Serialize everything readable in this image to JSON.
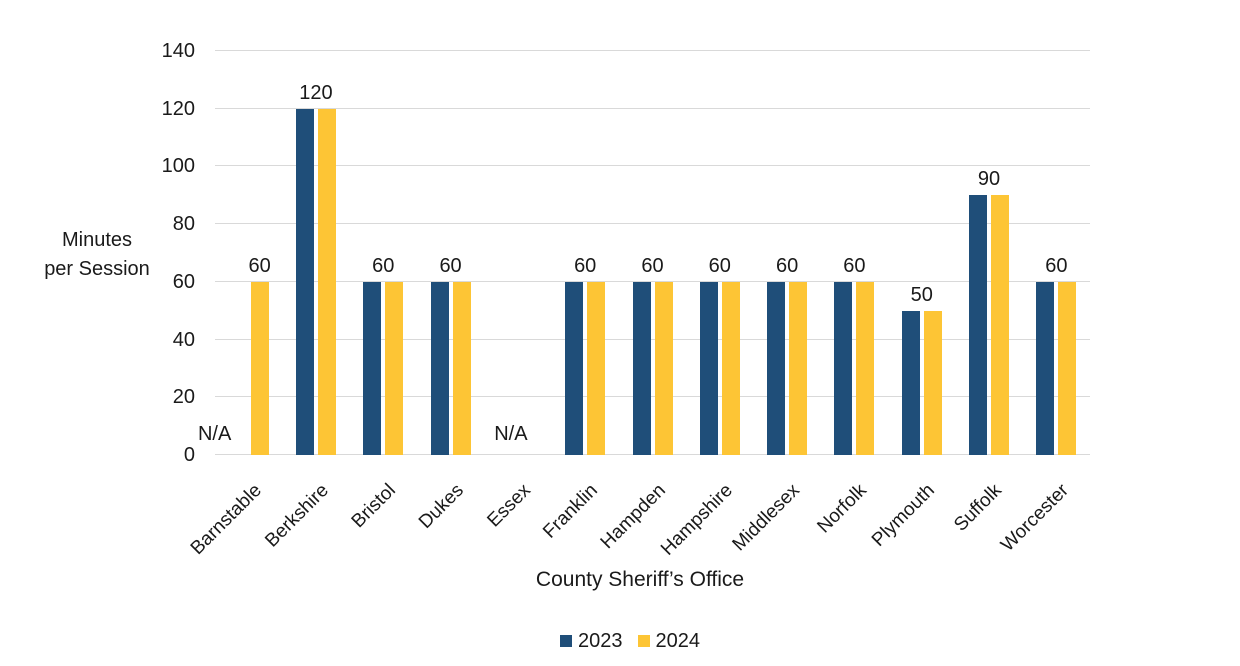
{
  "chart_data": {
    "type": "bar",
    "title": "",
    "xlabel": "County Sheriff’s Office",
    "ylabel_lines": [
      "Minutes",
      "per Session"
    ],
    "ylim": [
      0,
      140
    ],
    "ytick_step": 20,
    "yticks": [
      0,
      20,
      40,
      60,
      80,
      100,
      120,
      140
    ],
    "grid": true,
    "legend_position": "bottom",
    "categories": [
      "Barnstable",
      "Berkshire",
      "Bristol",
      "Dukes",
      "Essex",
      "Franklin",
      "Hampden",
      "Hampshire",
      "Middlesex",
      "Norfolk",
      "Plymouth",
      "Suffolk",
      "Worcester"
    ],
    "series": [
      {
        "name": "2023",
        "color": "#1F4E79",
        "values": [
          null,
          120,
          60,
          60,
          null,
          60,
          60,
          60,
          60,
          60,
          50,
          90,
          60
        ]
      },
      {
        "name": "2024",
        "color": "#FDC535",
        "values": [
          60,
          120,
          60,
          60,
          null,
          60,
          60,
          60,
          60,
          60,
          50,
          90,
          60
        ]
      }
    ],
    "value_labels": [
      "60",
      "120",
      "60",
      "60",
      "",
      "60",
      "60",
      "60",
      "60",
      "60",
      "50",
      "90",
      "60"
    ],
    "na_text": "N/A",
    "na_annotations": [
      {
        "category": "Barnstable",
        "position": "series-2023"
      },
      {
        "category": "Essex",
        "position": "center"
      }
    ],
    "colors": {
      "grid": "#D9D9D9",
      "text": "#1A1A1A",
      "background": "#FFFFFF"
    }
  }
}
